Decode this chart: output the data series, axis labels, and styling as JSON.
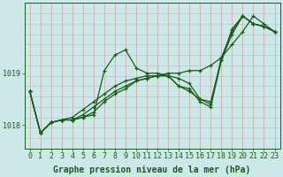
{
  "xlabel": "Graphe pression niveau de la mer (hPa)",
  "bg_color": "#cce8e8",
  "line_color": "#1a5c1a",
  "grid_color_v": "#d4a0a0",
  "grid_color_h": "#a8cccc",
  "xlim_min": -0.5,
  "xlim_max": 23.5,
  "ylim_min": 1017.55,
  "ylim_max": 1020.35,
  "yticks": [
    1018,
    1019
  ],
  "xticks": [
    0,
    1,
    2,
    3,
    4,
    5,
    6,
    7,
    8,
    9,
    10,
    11,
    12,
    13,
    14,
    15,
    16,
    17,
    18,
    19,
    20,
    21,
    22,
    23
  ],
  "series": [
    [
      1018.65,
      1017.85,
      1018.05,
      1018.1,
      1018.1,
      1018.15,
      1018.2,
      1019.05,
      1019.35,
      1019.45,
      1019.1,
      1019.0,
      1019.0,
      1018.95,
      1018.75,
      1018.65,
      1018.5,
      1018.45,
      1019.25,
      1019.85,
      1020.1,
      1019.95,
      1019.9,
      1019.8
    ],
    [
      1018.65,
      1017.85,
      1018.05,
      1018.1,
      1018.1,
      1018.15,
      1018.25,
      1018.45,
      1018.6,
      1018.7,
      1018.85,
      1018.9,
      1018.95,
      1019.0,
      1019.0,
      1019.05,
      1019.05,
      1019.15,
      1019.3,
      1019.55,
      1019.8,
      1020.1,
      1019.95,
      1019.8
    ],
    [
      1018.65,
      1017.85,
      1018.05,
      1018.1,
      1018.1,
      1018.2,
      1018.35,
      1018.5,
      1018.65,
      1018.75,
      1018.85,
      1018.9,
      1018.95,
      1018.95,
      1018.9,
      1018.8,
      1018.5,
      1018.4,
      1019.3,
      1019.8,
      1020.1,
      1019.95,
      1019.9,
      1019.8
    ],
    [
      1018.65,
      1017.85,
      1018.05,
      1018.1,
      1018.15,
      1018.3,
      1018.45,
      1018.6,
      1018.75,
      1018.85,
      1018.9,
      1018.95,
      1018.95,
      1018.95,
      1018.75,
      1018.7,
      1018.45,
      1018.35,
      1019.25,
      1019.75,
      1020.1,
      1019.95,
      1019.9,
      1019.8
    ]
  ],
  "marker_size": 2.8,
  "line_width": 0.9,
  "tick_fontsize": 6.0,
  "label_fontsize": 7.0
}
